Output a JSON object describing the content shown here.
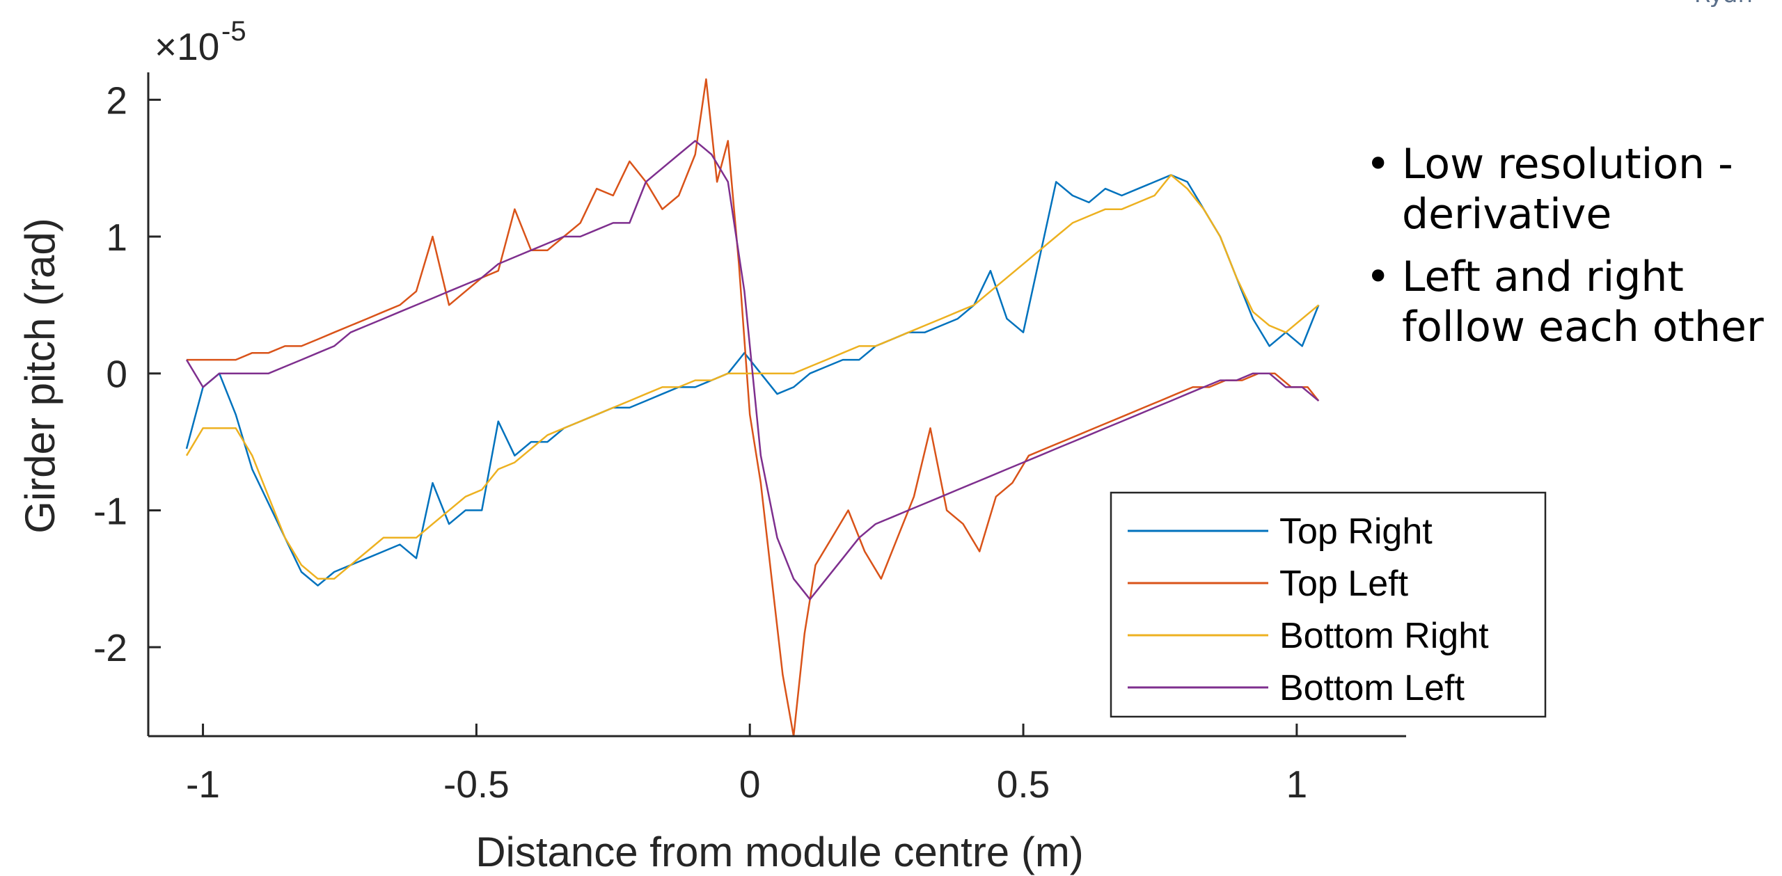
{
  "corner_note": "Ryan",
  "bullets": [
    {
      "text": "Low resolution - derivative"
    },
    {
      "text": "Left and right follow each other"
    }
  ],
  "chart_data": {
    "type": "line",
    "title": "",
    "xlabel": "Distance from module centre (m)",
    "ylabel": "Girder pitch (rad)",
    "y_exponent_label": "×10",
    "y_exponent": "-5",
    "xlim": [
      -1.1,
      1.2
    ],
    "ylim": [
      -2.65,
      2.2
    ],
    "xticks": [
      -1,
      -0.5,
      0,
      0.5,
      1
    ],
    "xtick_labels": [
      "-1",
      "-0.5",
      "0",
      "0.5",
      "1"
    ],
    "yticks": [
      -2,
      -1,
      0,
      1,
      2
    ],
    "ytick_labels": [
      "-2",
      "-1",
      "0",
      "1",
      "2"
    ],
    "grid": false,
    "legend_position": "bottom-right",
    "series": [
      {
        "name": "Top Right",
        "color": "#0072BD",
        "x": [
          -1.03,
          -1.0,
          -0.97,
          -0.94,
          -0.91,
          -0.88,
          -0.85,
          -0.82,
          -0.79,
          -0.76,
          -0.73,
          -0.7,
          -0.67,
          -0.64,
          -0.61,
          -0.58,
          -0.55,
          -0.52,
          -0.49,
          -0.46,
          -0.43,
          -0.4,
          -0.37,
          -0.34,
          -0.31,
          -0.28,
          -0.25,
          -0.22,
          -0.19,
          -0.16,
          -0.13,
          -0.1,
          -0.07,
          -0.04,
          -0.01,
          0.02,
          0.05,
          0.08,
          0.11,
          0.14,
          0.17,
          0.2,
          0.23,
          0.26,
          0.29,
          0.32,
          0.35,
          0.38,
          0.41,
          0.44,
          0.47,
          0.5,
          0.53,
          0.56,
          0.59,
          0.62,
          0.65,
          0.68,
          0.71,
          0.74,
          0.77,
          0.8,
          0.83,
          0.86,
          0.89,
          0.92,
          0.95,
          0.98,
          1.01,
          1.04
        ],
        "y": [
          -0.55,
          -0.1,
          0.0,
          -0.3,
          -0.7,
          -0.95,
          -1.2,
          -1.45,
          -1.55,
          -1.45,
          -1.4,
          -1.35,
          -1.3,
          -1.25,
          -1.35,
          -0.8,
          -1.1,
          -1.0,
          -1.0,
          -0.35,
          -0.6,
          -0.5,
          -0.5,
          -0.4,
          -0.35,
          -0.3,
          -0.25,
          -0.25,
          -0.2,
          -0.15,
          -0.1,
          -0.1,
          -0.05,
          0.0,
          0.15,
          0.0,
          -0.15,
          -0.1,
          0.0,
          0.05,
          0.1,
          0.1,
          0.2,
          0.25,
          0.3,
          0.3,
          0.35,
          0.4,
          0.5,
          0.75,
          0.4,
          0.3,
          0.85,
          1.4,
          1.3,
          1.25,
          1.35,
          1.3,
          1.35,
          1.4,
          1.45,
          1.4,
          1.2,
          1.0,
          0.7,
          0.4,
          0.2,
          0.3,
          0.2,
          0.5
        ]
      },
      {
        "name": "Top Left",
        "color": "#D95319",
        "x": [
          -1.03,
          -1.0,
          -0.97,
          -0.94,
          -0.91,
          -0.88,
          -0.85,
          -0.82,
          -0.79,
          -0.76,
          -0.73,
          -0.7,
          -0.67,
          -0.64,
          -0.61,
          -0.58,
          -0.55,
          -0.52,
          -0.49,
          -0.46,
          -0.43,
          -0.4,
          -0.37,
          -0.34,
          -0.31,
          -0.28,
          -0.25,
          -0.22,
          -0.19,
          -0.16,
          -0.13,
          -0.1,
          -0.08,
          -0.06,
          -0.04,
          -0.02,
          0.0,
          0.02,
          0.04,
          0.06,
          0.08,
          0.1,
          0.12,
          0.15,
          0.18,
          0.21,
          0.24,
          0.27,
          0.3,
          0.33,
          0.36,
          0.39,
          0.42,
          0.45,
          0.48,
          0.51,
          0.54,
          0.57,
          0.6,
          0.63,
          0.66,
          0.69,
          0.72,
          0.75,
          0.78,
          0.81,
          0.84,
          0.87,
          0.9,
          0.93,
          0.96,
          0.99,
          1.02,
          1.04
        ],
        "y": [
          0.1,
          0.1,
          0.1,
          0.1,
          0.15,
          0.15,
          0.2,
          0.2,
          0.25,
          0.3,
          0.35,
          0.4,
          0.45,
          0.5,
          0.6,
          1.0,
          0.5,
          0.6,
          0.7,
          0.75,
          1.2,
          0.9,
          0.9,
          1.0,
          1.1,
          1.35,
          1.3,
          1.55,
          1.4,
          1.2,
          1.3,
          1.6,
          2.15,
          1.4,
          1.7,
          0.8,
          -0.3,
          -0.8,
          -1.5,
          -2.2,
          -2.65,
          -1.9,
          -1.4,
          -1.2,
          -1.0,
          -1.3,
          -1.5,
          -1.2,
          -0.9,
          -0.4,
          -1.0,
          -1.1,
          -1.3,
          -0.9,
          -0.8,
          -0.6,
          -0.55,
          -0.5,
          -0.45,
          -0.4,
          -0.35,
          -0.3,
          -0.25,
          -0.2,
          -0.15,
          -0.1,
          -0.1,
          -0.05,
          -0.05,
          0.0,
          0.0,
          -0.1,
          -0.1,
          -0.2
        ]
      },
      {
        "name": "Bottom Right",
        "color": "#EDB120",
        "x": [
          -1.03,
          -1.0,
          -0.97,
          -0.94,
          -0.91,
          -0.88,
          -0.85,
          -0.82,
          -0.79,
          -0.76,
          -0.73,
          -0.7,
          -0.67,
          -0.64,
          -0.61,
          -0.58,
          -0.55,
          -0.52,
          -0.49,
          -0.46,
          -0.43,
          -0.4,
          -0.37,
          -0.34,
          -0.31,
          -0.28,
          -0.25,
          -0.22,
          -0.19,
          -0.16,
          -0.13,
          -0.1,
          -0.07,
          -0.04,
          -0.01,
          0.02,
          0.05,
          0.08,
          0.11,
          0.14,
          0.17,
          0.2,
          0.23,
          0.26,
          0.29,
          0.32,
          0.35,
          0.38,
          0.41,
          0.44,
          0.47,
          0.5,
          0.53,
          0.56,
          0.59,
          0.62,
          0.65,
          0.68,
          0.71,
          0.74,
          0.77,
          0.8,
          0.83,
          0.86,
          0.89,
          0.92,
          0.95,
          0.98,
          1.01,
          1.04
        ],
        "y": [
          -0.6,
          -0.4,
          -0.4,
          -0.4,
          -0.6,
          -0.9,
          -1.2,
          -1.4,
          -1.5,
          -1.5,
          -1.4,
          -1.3,
          -1.2,
          -1.2,
          -1.2,
          -1.1,
          -1.0,
          -0.9,
          -0.85,
          -0.7,
          -0.65,
          -0.55,
          -0.45,
          -0.4,
          -0.35,
          -0.3,
          -0.25,
          -0.2,
          -0.15,
          -0.1,
          -0.1,
          -0.05,
          -0.05,
          0.0,
          0.0,
          0.0,
          0.0,
          0.0,
          0.05,
          0.1,
          0.15,
          0.2,
          0.2,
          0.25,
          0.3,
          0.35,
          0.4,
          0.45,
          0.5,
          0.6,
          0.7,
          0.8,
          0.9,
          1.0,
          1.1,
          1.15,
          1.2,
          1.2,
          1.25,
          1.3,
          1.45,
          1.35,
          1.2,
          1.0,
          0.7,
          0.45,
          0.35,
          0.3,
          0.4,
          0.5
        ]
      },
      {
        "name": "Bottom Left",
        "color": "#7E2F8E",
        "x": [
          -1.03,
          -1.0,
          -0.97,
          -0.94,
          -0.91,
          -0.88,
          -0.85,
          -0.82,
          -0.79,
          -0.76,
          -0.73,
          -0.7,
          -0.67,
          -0.64,
          -0.61,
          -0.58,
          -0.55,
          -0.52,
          -0.49,
          -0.46,
          -0.43,
          -0.4,
          -0.37,
          -0.34,
          -0.31,
          -0.28,
          -0.25,
          -0.22,
          -0.19,
          -0.16,
          -0.13,
          -0.1,
          -0.07,
          -0.04,
          -0.01,
          0.02,
          0.05,
          0.08,
          0.11,
          0.14,
          0.17,
          0.2,
          0.23,
          0.26,
          0.29,
          0.32,
          0.35,
          0.38,
          0.41,
          0.44,
          0.47,
          0.5,
          0.53,
          0.56,
          0.59,
          0.62,
          0.65,
          0.68,
          0.71,
          0.74,
          0.77,
          0.8,
          0.83,
          0.86,
          0.89,
          0.92,
          0.95,
          0.98,
          1.01,
          1.04
        ],
        "y": [
          0.1,
          -0.1,
          0.0,
          0.0,
          0.0,
          0.0,
          0.05,
          0.1,
          0.15,
          0.2,
          0.3,
          0.35,
          0.4,
          0.45,
          0.5,
          0.55,
          0.6,
          0.65,
          0.7,
          0.8,
          0.85,
          0.9,
          0.95,
          1.0,
          1.0,
          1.05,
          1.1,
          1.1,
          1.4,
          1.5,
          1.6,
          1.7,
          1.6,
          1.4,
          0.6,
          -0.6,
          -1.2,
          -1.5,
          -1.65,
          -1.5,
          -1.35,
          -1.2,
          -1.1,
          -1.05,
          -1.0,
          -0.95,
          -0.9,
          -0.85,
          -0.8,
          -0.75,
          -0.7,
          -0.65,
          -0.6,
          -0.55,
          -0.5,
          -0.45,
          -0.4,
          -0.35,
          -0.3,
          -0.25,
          -0.2,
          -0.15,
          -0.1,
          -0.05,
          -0.05,
          0.0,
          0.0,
          -0.1,
          -0.1,
          -0.2
        ]
      }
    ]
  }
}
